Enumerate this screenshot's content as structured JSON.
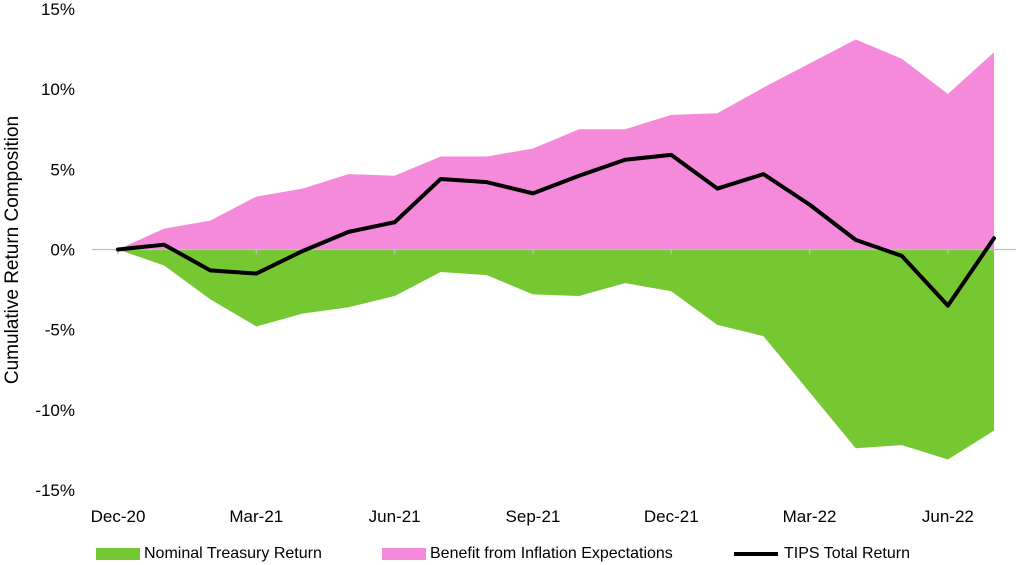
{
  "chart_data": {
    "type": "area",
    "title": "",
    "xlabel": "",
    "ylabel": "Cumulative Return Composition",
    "ylim": [
      -15,
      15
    ],
    "yticks": [
      -15,
      -10,
      -5,
      0,
      5,
      10,
      15
    ],
    "ytick_labels": [
      "-15%",
      "-10%",
      "-5%",
      "0%",
      "5%",
      "10%",
      "15%"
    ],
    "x": [
      "Dec-20",
      "Jan-21",
      "Feb-21",
      "Mar-21",
      "Apr-21",
      "May-21",
      "Jun-21",
      "Jul-21",
      "Aug-21",
      "Sep-21",
      "Oct-21",
      "Nov-21",
      "Dec-21",
      "Jan-22",
      "Feb-22",
      "Mar-22",
      "Apr-22",
      "May-22",
      "Jun-22",
      "Jul-22"
    ],
    "xtick_labels": [
      "Dec-20",
      "Mar-21",
      "Jun-21",
      "Sep-21",
      "Dec-21",
      "Mar-22",
      "Jun-22"
    ],
    "grid": false,
    "legend_position": "bottom",
    "series": [
      {
        "name": "Nominal Treasury Return",
        "kind": "area",
        "color": "#76c832",
        "values": [
          0,
          -1.0,
          -3.1,
          -4.8,
          -4.0,
          -3.6,
          -2.9,
          -1.4,
          -1.6,
          -2.8,
          -2.9,
          -2.1,
          -2.6,
          -4.7,
          -5.4,
          -8.9,
          -12.4,
          -12.2,
          -13.1,
          -11.3
        ]
      },
      {
        "name": "Benefit from Inflation Expectations",
        "kind": "area",
        "color": "#f48ad9",
        "values": [
          0,
          1.3,
          1.8,
          3.3,
          3.8,
          4.7,
          4.6,
          5.8,
          5.8,
          6.3,
          7.5,
          7.5,
          8.4,
          8.5,
          10.1,
          11.6,
          13.1,
          11.9,
          9.7,
          12.3
        ]
      },
      {
        "name": "TIPS Total Return",
        "kind": "line",
        "color": "#000000",
        "values": [
          0,
          0.3,
          -1.3,
          -1.5,
          -0.1,
          1.1,
          1.7,
          4.4,
          4.2,
          3.5,
          4.6,
          5.6,
          5.9,
          3.8,
          4.7,
          2.8,
          0.6,
          -0.4,
          -3.5,
          0.7
        ]
      }
    ]
  }
}
